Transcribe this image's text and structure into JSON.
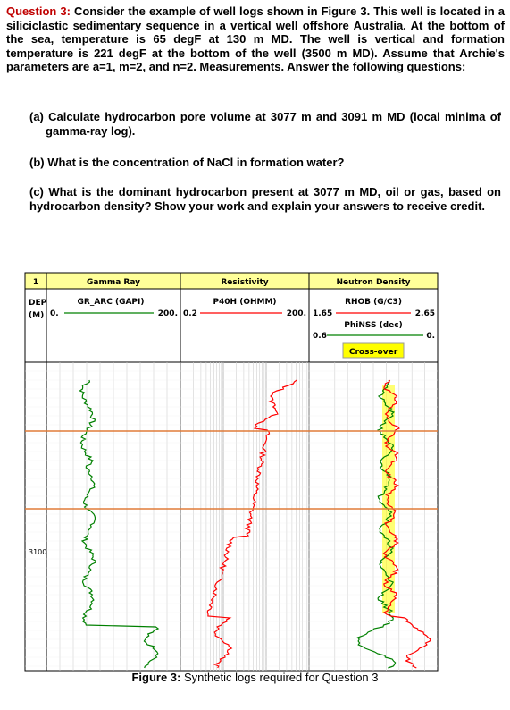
{
  "question": {
    "label": "Question 3:",
    "text": "Consider the example of well logs shown in Figure 3. This well is located in a siliciclastic sedimentary sequence in a vertical well offshore Australia. At the bottom of the sea, temperature is 65 degF at 130 m MD. The well is vertical and formation temperature is 221 degF at the bottom of the well (3500 m MD). Assume that Archie's parameters are a=1, m=2, and n=2. Measurements. Answer the following questions:"
  },
  "parts": {
    "a": "(a) Calculate hydrocarbon pore volume at 3077 m and 3091 m MD (local minima of gamma-ray log).",
    "b": "(b) What is the concentration of NaCl in formation water?",
    "c": "(c) What is the dominant hydrocarbon present at 3077 m MD, oil or gas, based on hydrocarbon density? Show your work and explain your answers to receive credit."
  },
  "figure": {
    "header": {
      "track_number": "1",
      "depth_label": "DEP",
      "depth_unit": "(M)",
      "gamma": {
        "title": "Gamma Ray",
        "curve": "GR_ARC (GAPI)",
        "min": "0.",
        "max": "200."
      },
      "resistivity": {
        "title": "Resistivity",
        "curve": "P40H (OHMM)",
        "min": "0.2",
        "max": "200."
      },
      "neutron_density": {
        "title": "Neutron Density",
        "rhob_curve": "RHOB (G/C3)",
        "rhob_min": "1.65",
        "rhob_max": "2.65",
        "phi_curve": "PhiNSS (dec)",
        "phi_min": "0.6",
        "phi_max": "0.",
        "crossover_label": "Cross-over"
      }
    },
    "depth_tick": "3100",
    "colors": {
      "gamma": "#008000",
      "resistivity": "#ff0000",
      "neutron": "#008000",
      "density": "#ff0000",
      "crossover": "#ffff00",
      "marker": "#e07b39",
      "header_fill": "#ffff99"
    },
    "caption_label": "Figure 3:",
    "caption_text": "Synthetic logs required for Question 3"
  }
}
